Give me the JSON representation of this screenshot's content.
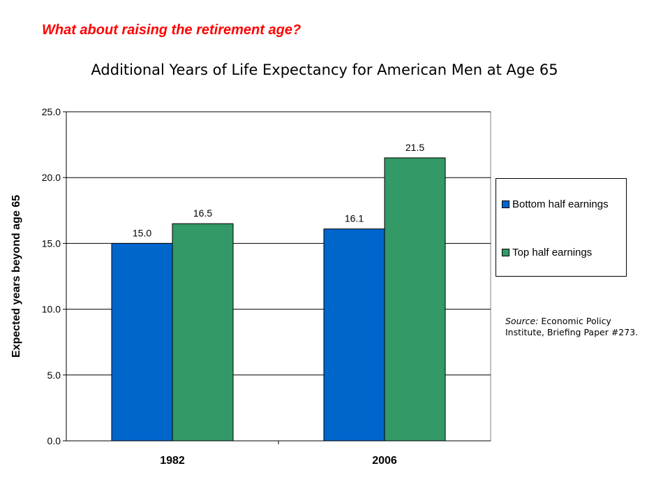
{
  "slide": {
    "heading": "What about raising the retirement age?"
  },
  "source": {
    "label": "Source:",
    "text": " Economic Policy Institute, Briefing Paper #273."
  },
  "colors": {
    "heading": "#ff0000",
    "bottom_half": "#0066cc",
    "top_half": "#339966"
  },
  "chart_data": {
    "type": "bar",
    "title": "Additional Years of Life Expectancy for American Men at Age 65",
    "xlabel": "",
    "ylabel": "Expected years beyond age 65",
    "categories": [
      "1982",
      "2006"
    ],
    "series": [
      {
        "name": "Bottom half earnings",
        "values": [
          15.0,
          16.1
        ],
        "labels": [
          "15.0",
          "16.1"
        ]
      },
      {
        "name": "Top half earnings",
        "values": [
          16.5,
          21.5
        ],
        "labels": [
          "16.5",
          "21.5"
        ]
      }
    ],
    "ylim": [
      0,
      25
    ],
    "yticks": [
      0,
      5,
      10,
      15,
      20,
      25
    ],
    "ytick_labels": [
      "0.0",
      "5.0",
      "10.0",
      "15.0",
      "20.0",
      "25.0"
    ],
    "grid": true,
    "legend_position": "right"
  }
}
